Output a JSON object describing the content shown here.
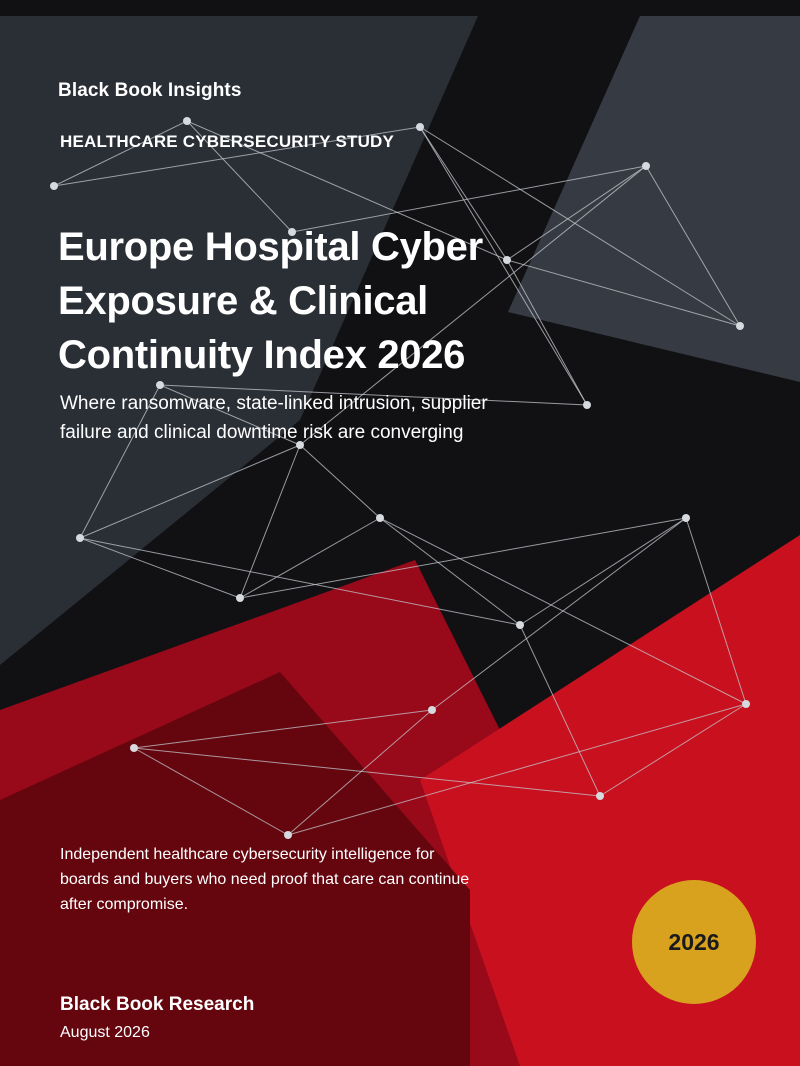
{
  "brand_label": "Black Book Insights",
  "eyebrow": "HEALTHCARE CYBERSECURITY STUDY",
  "title_lines": [
    "Europe Hospital Cyber",
    "Exposure & Clinical",
    "Continuity Index 2026"
  ],
  "subtitle_lines": [
    "Where ransomware, state-linked intrusion, supplier",
    "failure and clinical downtime risk are converging"
  ],
  "tagline_lines": [
    "Independent healthcare cybersecurity intelligence for",
    "boards and buyers who need proof that care can continue",
    "after compromise."
  ],
  "publisher": "Black Book Research",
  "date": "August 2026",
  "year_badge": "2026",
  "colors": {
    "dark_background": "#111114",
    "slate_panel": "#2a2e35",
    "grey_panel": "#363b43",
    "red_panel": "#c8101f",
    "dark_red_panel": "#98091a",
    "deep_red_panel": "#65060f",
    "network_lines": "#c4c8ce",
    "badge": "#d8a21f"
  }
}
